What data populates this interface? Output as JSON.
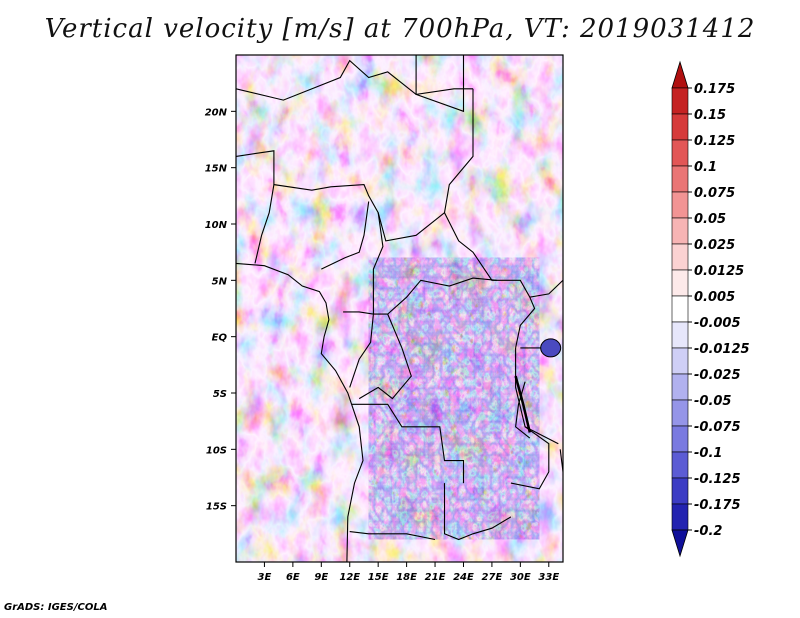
{
  "chart_data": {
    "type": "heatmap",
    "title": "Vertical velocity [m/s] at 700hPa, VT: 2019031412",
    "x_ticks": [
      "3E",
      "6E",
      "9E",
      "12E",
      "15E",
      "18E",
      "21E",
      "24E",
      "27E",
      "30E",
      "33E"
    ],
    "x_tick_values": [
      3,
      6,
      9,
      12,
      15,
      18,
      21,
      24,
      27,
      30,
      33
    ],
    "y_ticks": [
      "20N",
      "15N",
      "10N",
      "5N",
      "EQ",
      "5S",
      "10S",
      "15S"
    ],
    "y_tick_values": [
      20,
      15,
      10,
      5,
      0,
      -5,
      -10,
      -15
    ],
    "xlim": [
      0,
      34.5
    ],
    "ylim": [
      -20,
      25
    ],
    "colorbar": {
      "levels": [
        "0.175",
        "0.15",
        "0.125",
        "0.1",
        "0.075",
        "0.05",
        "0.025",
        "0.0125",
        "0.005",
        "-0.005",
        "-0.0125",
        "-0.025",
        "-0.05",
        "-0.075",
        "-0.1",
        "-0.125",
        "-0.175",
        "-0.2"
      ],
      "colors": [
        "#b01010",
        "#c52222",
        "#d63a3a",
        "#e25656",
        "#ea7575",
        "#f29494",
        "#f7b4b4",
        "#fbd2d2",
        "#fdeaea",
        "#ffffff",
        "#e7e7fb",
        "#cfcff6",
        "#b1b1ef",
        "#9595e8",
        "#7a7ae0",
        "#5c5cd4",
        "#3c3cc4",
        "#2323b0",
        "#10109a"
      ]
    },
    "grid": false
  },
  "footer": "GrADS: IGES/COLA"
}
